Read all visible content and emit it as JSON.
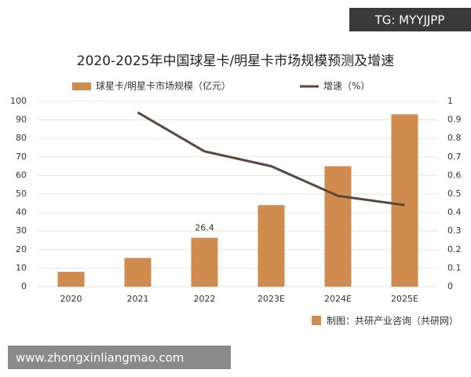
{
  "header_tag": "TG: MYYJJPP",
  "footer_url": "www.zhongxinliangmao.com",
  "chart_data": {
    "type": "bar_line",
    "title": "2020-2025年中国球星卡/明星卡市场规模预测及增速",
    "source": "制图：共研产业咨询（共研网）",
    "categories": [
      "2020",
      "2021",
      "2022",
      "2023E",
      "2024E",
      "2025E"
    ],
    "series": [
      {
        "name": "球星卡/明星卡市场规模（亿元）",
        "type": "bar",
        "color": "#d08b4e",
        "values": [
          8,
          15.5,
          26.4,
          44,
          65,
          93
        ],
        "value_labels": [
          null,
          null,
          "26.4",
          null,
          null,
          null
        ]
      },
      {
        "name": "增速（%）",
        "type": "line",
        "color": "#5a4840",
        "axis": "y2",
        "values": [
          null,
          0.94,
          0.73,
          0.65,
          0.49,
          0.44
        ]
      }
    ],
    "ylim": [
      0,
      100
    ],
    "yticks": [
      0,
      10,
      20,
      30,
      40,
      50,
      60,
      70,
      80,
      90,
      100
    ],
    "y2lim": [
      0,
      1
    ],
    "y2ticks": [
      0,
      0.1,
      0.2,
      0.3,
      0.4,
      0.5,
      0.6,
      0.7,
      0.8,
      0.9,
      1
    ],
    "grid": true
  }
}
